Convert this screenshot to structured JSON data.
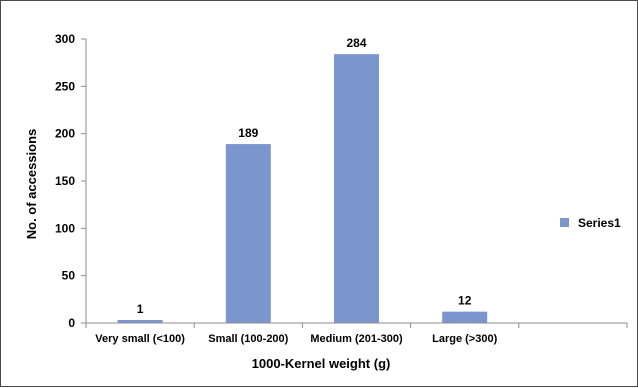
{
  "chart_data": {
    "type": "bar",
    "categories": [
      "Very small (<100)",
      "Small (100-200)",
      "Medium (201-300)",
      "Large (>300)",
      ""
    ],
    "series": [
      {
        "name": "Series1",
        "values": [
          1,
          189,
          284,
          12,
          null
        ],
        "color": "#7b96cf"
      }
    ],
    "data_labels": [
      "1",
      "189",
      "284",
      "12",
      ""
    ],
    "xlabel": "1000-Kernel weight (g)",
    "ylabel": "No. of accessions",
    "ylim": [
      0,
      300
    ],
    "yticks": [
      0,
      50,
      100,
      150,
      200,
      250,
      300
    ],
    "grid": false,
    "legend_position": "right"
  }
}
